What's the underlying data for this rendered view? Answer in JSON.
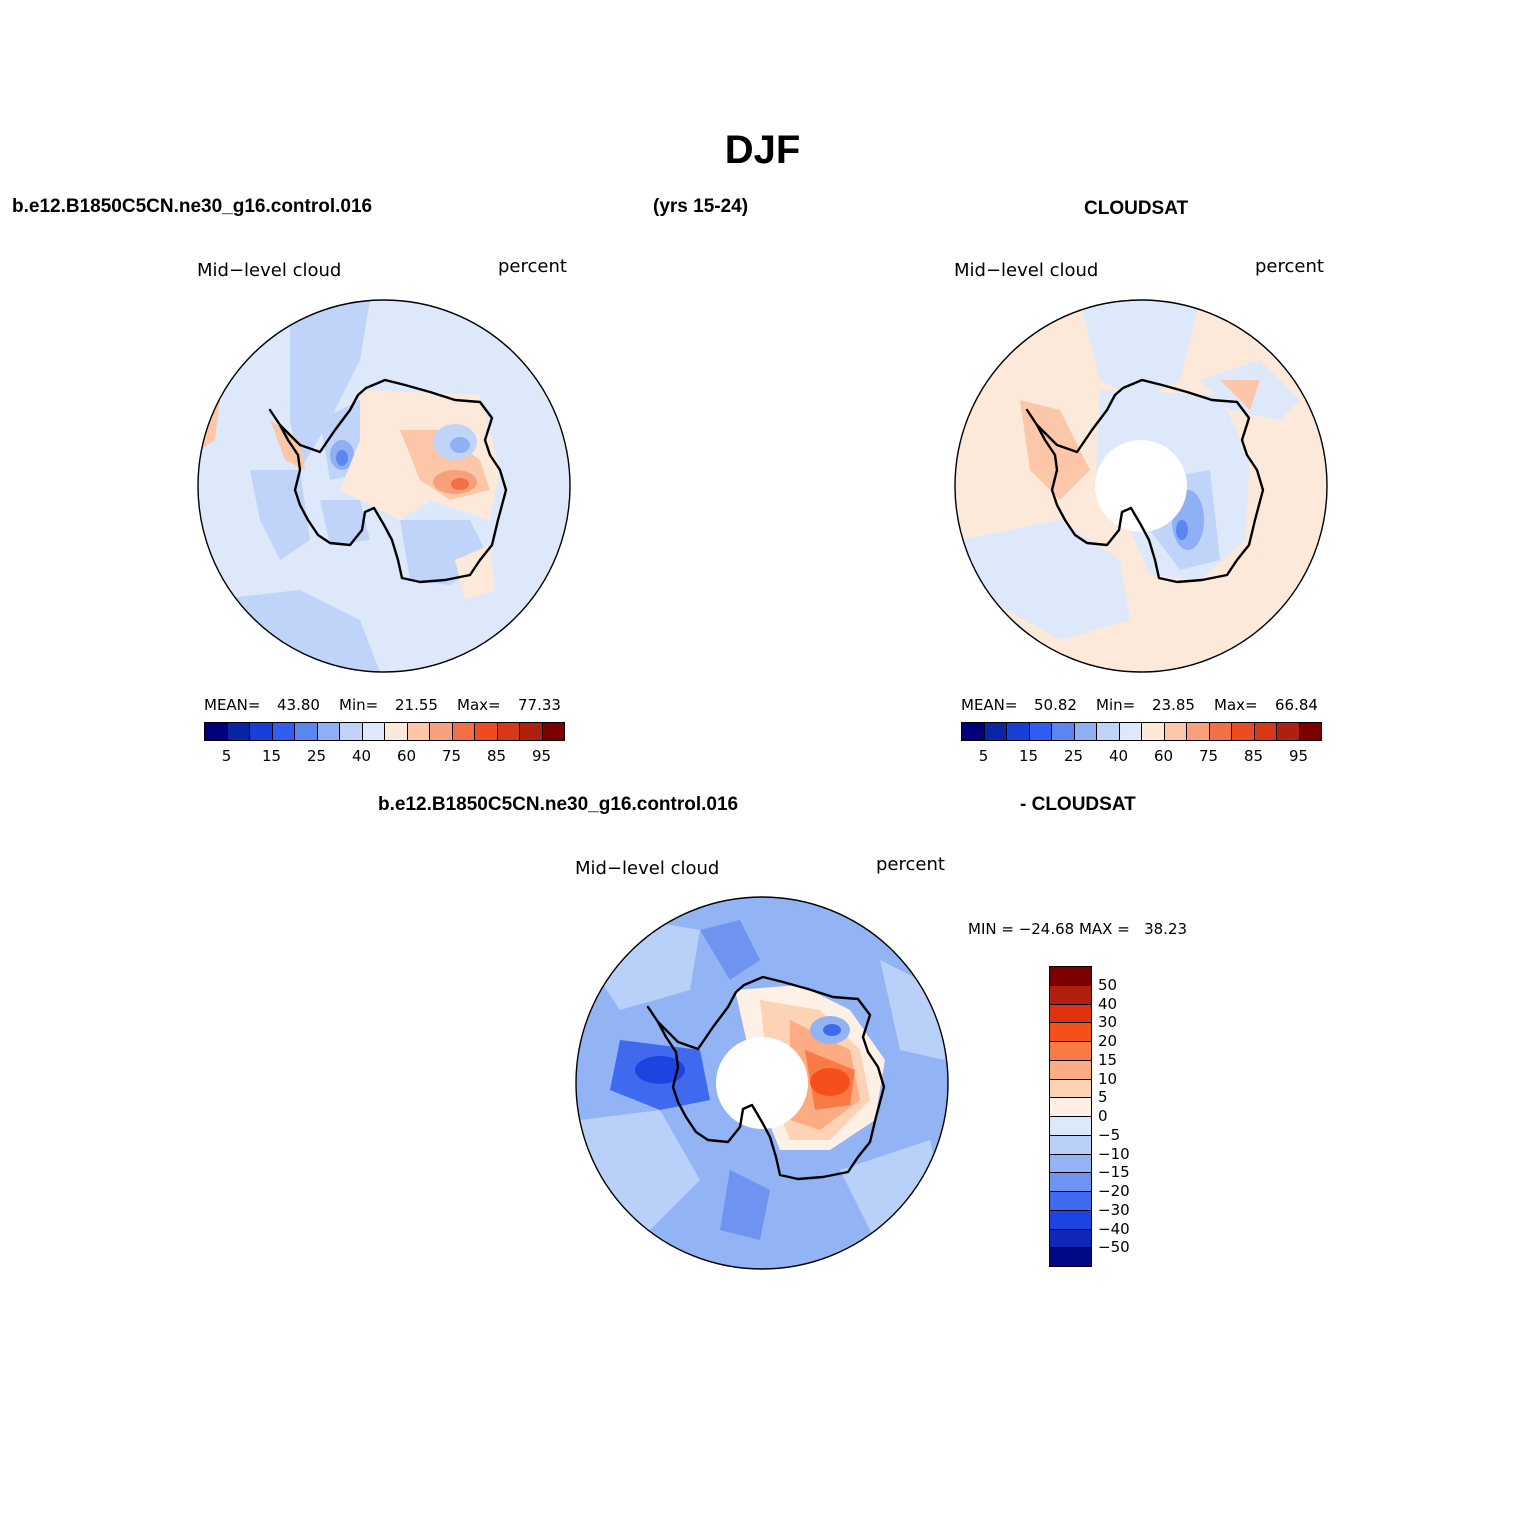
{
  "header": {
    "title": "DJF",
    "case_name": "b.e12.B1850C5CN.ne30_g16.control.016",
    "years": "(yrs 15-24)",
    "obs_name": "CLOUDSAT",
    "diff_case_name": "b.e12.B1850C5CN.ne30_g16.control.016",
    "diff_obs_name": "- CLOUDSAT"
  },
  "panels": [
    {
      "variable": "Mid−level cloud",
      "units": "percent",
      "mean_label": "MEAN=",
      "mean": "43.80",
      "min_label": "Min=",
      "min": "21.55",
      "max_label": "Max=",
      "max": "77.33"
    },
    {
      "variable": "Mid−level cloud",
      "units": "percent",
      "mean_label": "MEAN=",
      "mean": "50.82",
      "min_label": "Min=",
      "min": "23.85",
      "max_label": "Max=",
      "max": "66.84"
    },
    {
      "variable": "Mid−level cloud",
      "units": "percent",
      "minmax_text": "MIN = −24.68 MAX =   38.23"
    }
  ],
  "colorbar_abs": {
    "colors": [
      "#00007d",
      "#0a24a6",
      "#1640d6",
      "#2e5ef2",
      "#5a86f2",
      "#8fb0f5",
      "#c0d3f8",
      "#dde9fb",
      "#fde9d9",
      "#fbc7a8",
      "#f7a07a",
      "#f36f45",
      "#ed4b22",
      "#d7381a",
      "#b0200f",
      "#7d0000"
    ],
    "tick_labels": [
      "5",
      "15",
      "25",
      "40",
      "60",
      "75",
      "85",
      "95"
    ]
  },
  "colorbar_diff": {
    "colors": [
      "#7d0000",
      "#b0200f",
      "#e0320f",
      "#f5501c",
      "#f97a45",
      "#fcab82",
      "#fdd2b5",
      "#fef0e4",
      "#dce9fb",
      "#b9d0f8",
      "#92b3f4",
      "#6e93f1",
      "#3f69ee",
      "#1d44e0",
      "#0f28b8",
      "#000885"
    ],
    "tick_labels": [
      "50",
      "40",
      "30",
      "20",
      "15",
      "10",
      "5",
      "0",
      "−5",
      "−10",
      "−15",
      "−20",
      "−30",
      "−40",
      "−50"
    ]
  }
}
